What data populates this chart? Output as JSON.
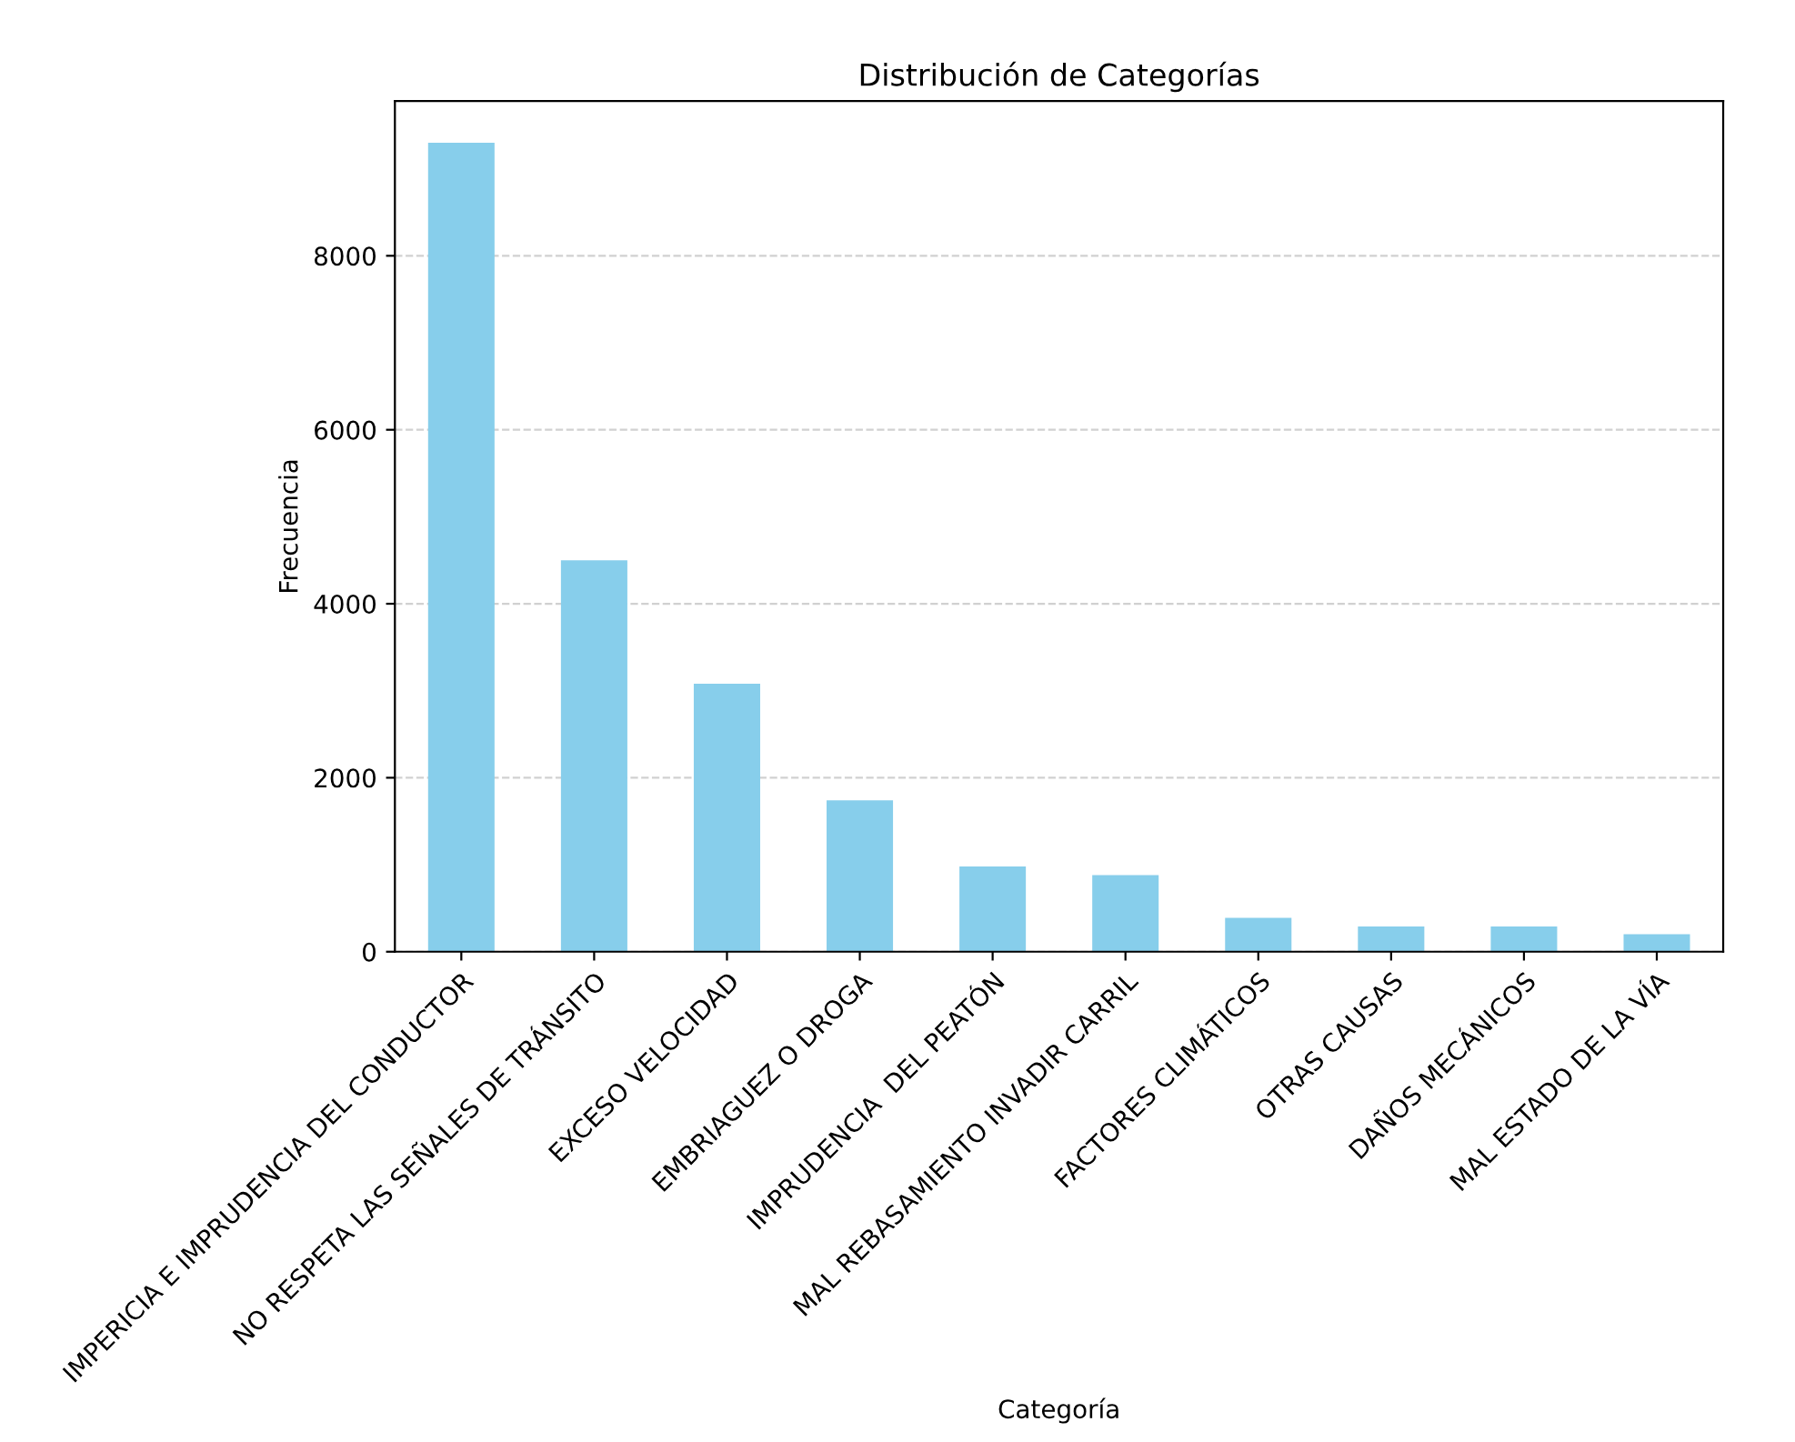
{
  "chart_data": {
    "type": "bar",
    "title": "Distribución de Categorías",
    "xlabel": "Categoría",
    "ylabel": "Frecuencia",
    "categories": [
      "IMPERICIA E IMPRUDENCIA DEL CONDUCTOR",
      "NO RESPETA LAS SEÑALES DE TRÁNSITO",
      "EXCESO VELOCIDAD",
      "EMBRIAGUEZ O DROGA",
      "IMPRUDENCIA  DEL PEATÓN",
      "MAL REBASAMIENTO INVADIR CARRIL",
      "FACTORES CLIMÁTICOS",
      "OTRAS CAUSAS",
      "DAÑOS MECÁNICOS",
      "MAL ESTADO DE LA VÍA"
    ],
    "values": [
      9300,
      4500,
      3080,
      1740,
      980,
      880,
      390,
      290,
      290,
      200
    ],
    "color": "#87ceeb",
    "ylim": [
      0,
      9780
    ],
    "yticks": [
      0,
      2000,
      4000,
      6000,
      8000
    ],
    "grid": "y"
  }
}
